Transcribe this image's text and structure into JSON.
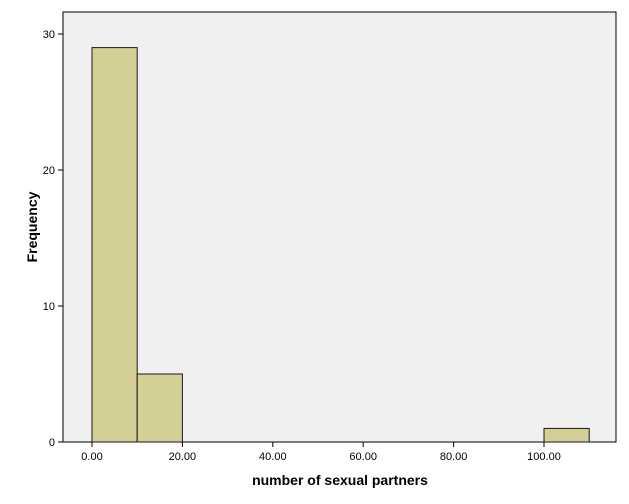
{
  "chart_data": {
    "type": "bar",
    "subtype": "histogram",
    "xlabel": "number of sexual partners",
    "ylabel": "Frequency",
    "xlim": [
      0,
      110
    ],
    "ylim": [
      0,
      30
    ],
    "x_ticks": [
      "0.00",
      "20.00",
      "40.00",
      "60.00",
      "80.00",
      "100.00"
    ],
    "y_ticks": [
      "0",
      "10",
      "20",
      "30"
    ],
    "bins": [
      {
        "start": 0,
        "end": 10,
        "count": 29
      },
      {
        "start": 10,
        "end": 20,
        "count": 5
      },
      {
        "start": 100,
        "end": 110,
        "count": 1
      }
    ],
    "bar_color": "#d3cf97",
    "bar_edge_color": "#1a1a1a",
    "plot_background": "#f0f0f0",
    "grid": false
  }
}
